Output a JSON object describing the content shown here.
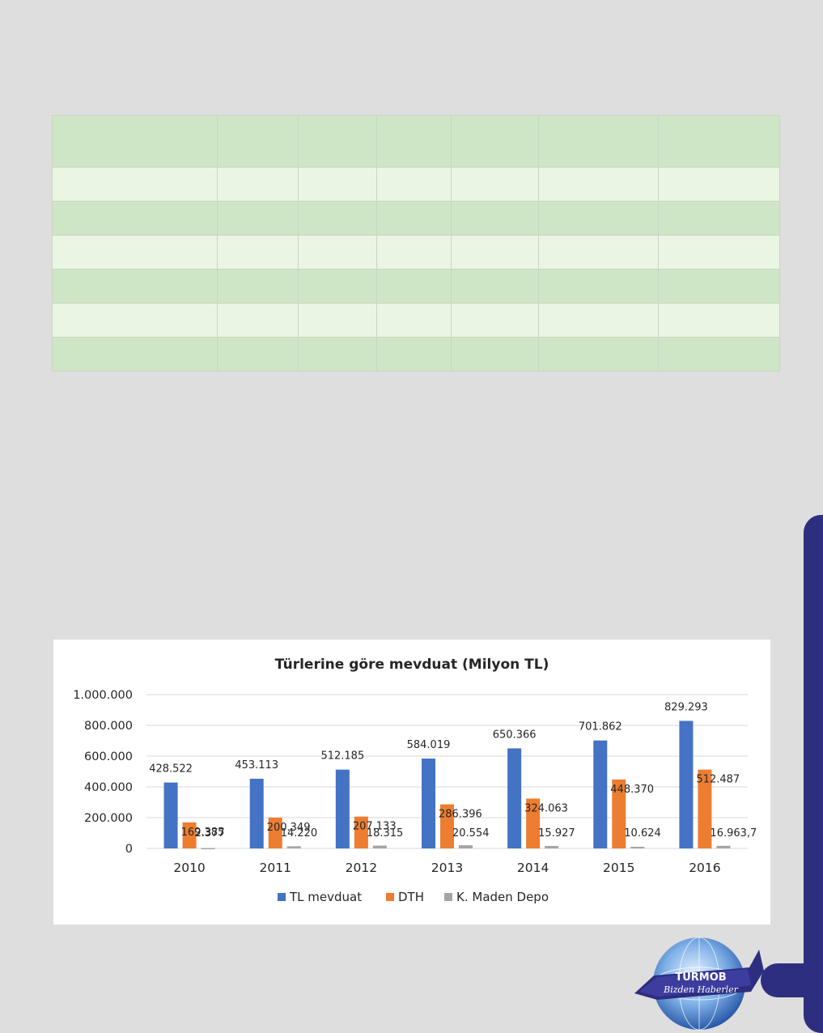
{
  "table": {
    "rows": 7,
    "cols": 7
  },
  "chart_data": {
    "type": "bar",
    "title": "Türlerine göre mevduat (Milyon TL)",
    "categories": [
      "2010",
      "2011",
      "2012",
      "2013",
      "2014",
      "2015",
      "2016"
    ],
    "series": [
      {
        "name": "TL mevduat",
        "color": "#4472c4",
        "values": [
          428522,
          453113,
          512185,
          584019,
          650366,
          701862,
          829293
        ],
        "labels": [
          "428.522",
          "453.113",
          "512.185",
          "584.019",
          "650.366",
          "701.862",
          "829.293"
        ]
      },
      {
        "name": "DTH",
        "color": "#ed7d31",
        "values": [
          169385,
          200349,
          207133,
          286396,
          324063,
          448370,
          512487
        ],
        "labels": [
          "169.385",
          "200.349",
          "207.133",
          "286.396",
          "324.063",
          "448.370",
          "512.487"
        ]
      },
      {
        "name": "K. Maden Depo",
        "color": "#a5a5a5",
        "values": [
          2377,
          14220,
          18315,
          20554,
          15927,
          10624,
          16963.7
        ],
        "labels": [
          "2.377",
          "14.220",
          "18.315",
          "20.554",
          "15.927",
          "10.624",
          "16.963,7"
        ]
      }
    ],
    "yticks": [
      0,
      200000,
      400000,
      600000,
      800000,
      1000000
    ],
    "ytick_labels": [
      "0",
      "200.000",
      "400.000",
      "600.000",
      "800.000",
      "1.000.000"
    ],
    "ylim": [
      0,
      1000000
    ],
    "grid": true,
    "legend_position": "bottom"
  },
  "logo": {
    "line1": "TÜRMOB",
    "line2": "Bizden Haberler"
  }
}
